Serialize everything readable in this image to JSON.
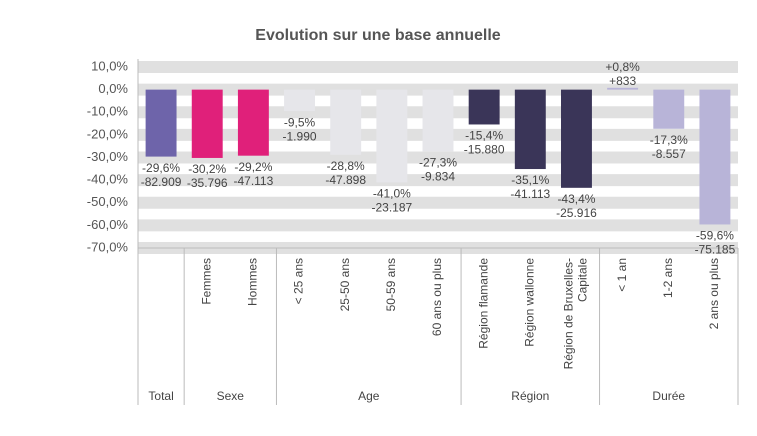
{
  "chart_data": {
    "type": "bar",
    "title": "Evolution sur une base annuelle",
    "categories": [
      null,
      "Femmes",
      "Hommes",
      "< 25 ans",
      "25-50 ans",
      "50-59 ans",
      "60 ans ou plus",
      "Région flamande",
      "Région wallonne",
      "Région de Bruxelles-Capitale",
      "< 1 an",
      "1-2 ans",
      "2 ans ou plus"
    ],
    "category_groups": [
      "Total",
      "Sexe",
      "Sexe",
      "Age",
      "Age",
      "Age",
      "Age",
      "Région",
      "Région",
      "Région",
      "Durée",
      "Durée",
      "Durée"
    ],
    "values": [
      -29.6,
      -30.2,
      -29.2,
      -9.5,
      -28.8,
      -41.0,
      -27.3,
      -15.4,
      -35.1,
      -43.4,
      0.8,
      -17.3,
      -59.6
    ],
    "value_labels": [
      "-29,6%",
      "-30,2%",
      "-29,2%",
      "-9,5%",
      "-28,8%",
      "-41,0%",
      "-27,3%",
      "-15,4%",
      "-35,1%",
      "-43,4%",
      "+0,8%",
      "-17,3%",
      "-59,6%"
    ],
    "counts": [
      -82909,
      -35796,
      -47113,
      -1990,
      -47898,
      -23187,
      -9834,
      -15880,
      -41113,
      -25916,
      833,
      -8557,
      -75185
    ],
    "count_labels": [
      "-82.909",
      "-35.796",
      "-47.113",
      "-1.990",
      "-47.898",
      "-23.187",
      "-9.834",
      "-15.880",
      "-41.113",
      "-25.916",
      "+833",
      "-8.557",
      "-75.185"
    ],
    "colors": [
      "#6e64aa",
      "#e0207a",
      "#e0207a",
      "#e6e6ea",
      "#e6e6ea",
      "#e6e6ea",
      "#e6e6ea",
      "#3a3558",
      "#3a3558",
      "#3a3558",
      "#b8b4d8",
      "#b8b4d8",
      "#b8b4d8"
    ],
    "ylim": [
      -70,
      10
    ],
    "yticks": [
      {
        "value": -70,
        "label": "-70,0%"
      },
      {
        "value": -60,
        "label": "-60,0%"
      },
      {
        "value": -50,
        "label": "-50,0%"
      },
      {
        "value": -40,
        "label": "-40,0%"
      },
      {
        "value": -30,
        "label": "-30,0%"
      },
      {
        "value": -20,
        "label": "-20,0%"
      },
      {
        "value": -10,
        "label": "-10,0%"
      },
      {
        "value": 0,
        "label": "0,0%"
      },
      {
        "value": 10,
        "label": "10,0%"
      }
    ],
    "grid": true
  }
}
